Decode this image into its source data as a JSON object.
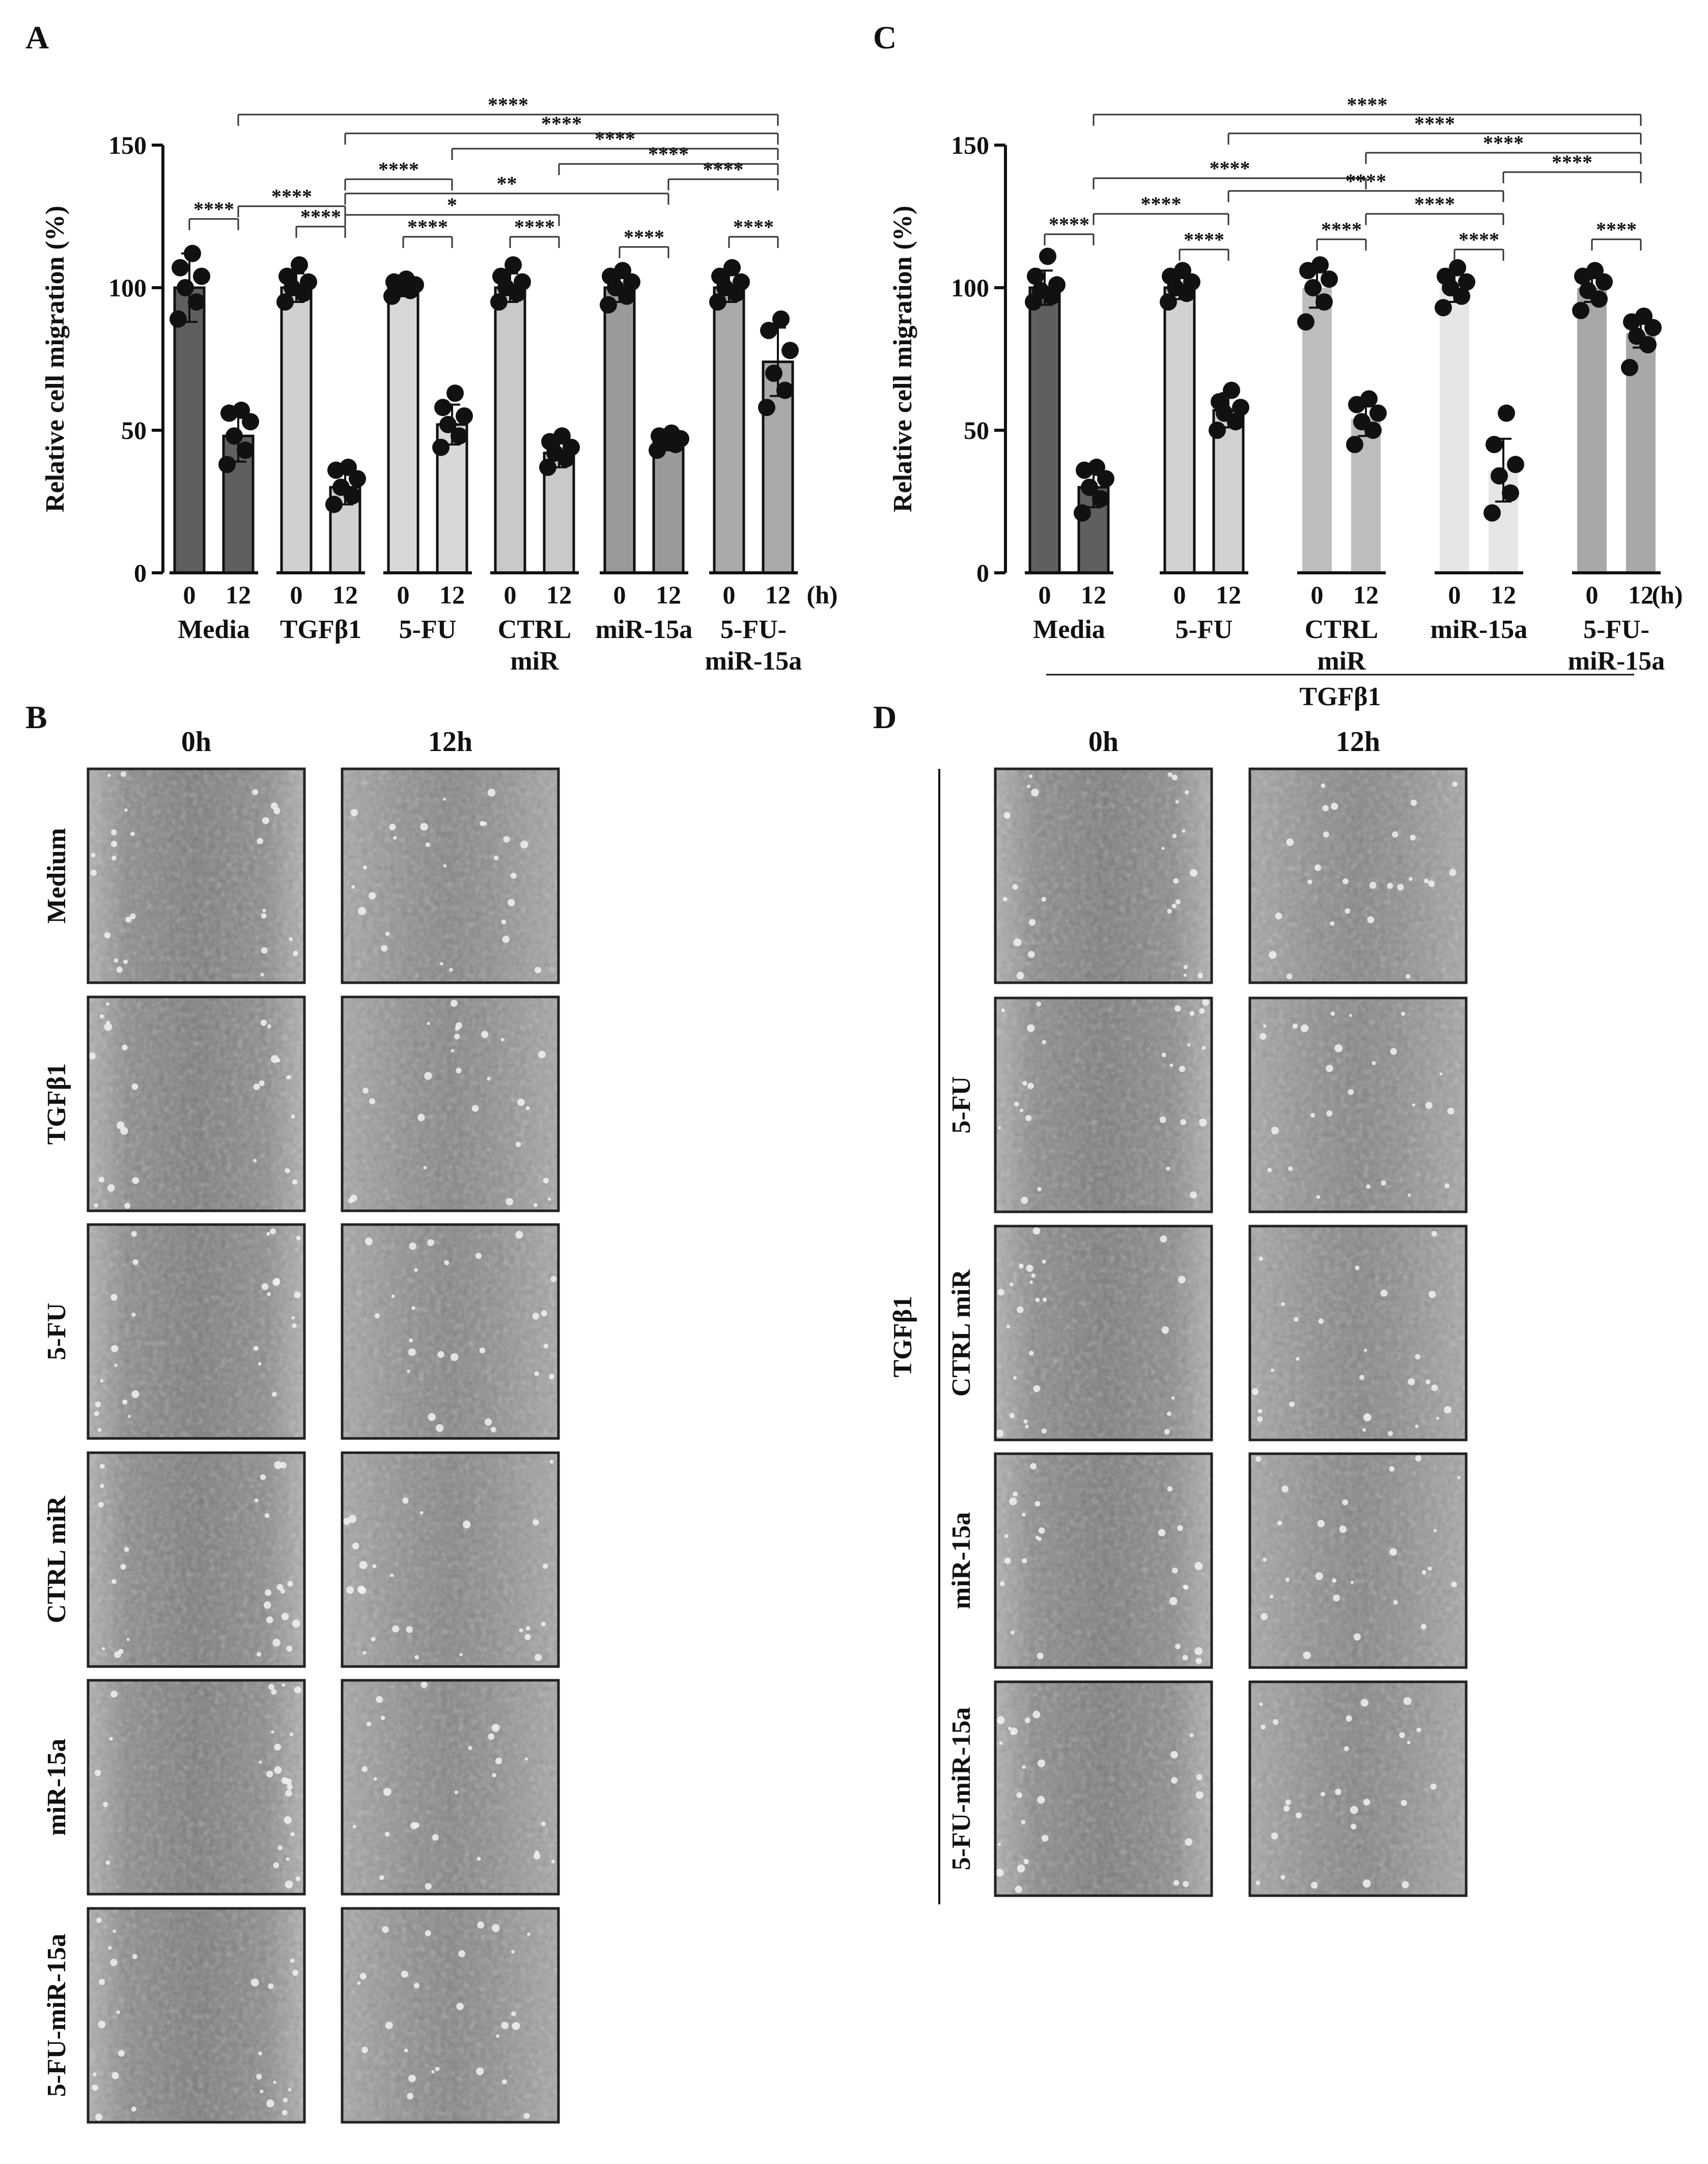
{
  "panel_labels": [
    "A",
    "B",
    "C",
    "D"
  ],
  "colors": {
    "bar_dark": "#6e6e6e",
    "bar_light": "#d6d6d6",
    "bar_lightgray": "#c2c2c2",
    "bar_verylight": "#e8e8e8",
    "micrograph_bg": "#7a7a7a"
  },
  "chart_data": [
    {
      "panel": "A",
      "type": "bar",
      "ylabel": "Relative cell migration (%)",
      "ylim": [
        0,
        150
      ],
      "yticks": [
        "0",
        "50",
        "100",
        "150"
      ],
      "time_unit_label": "(h)",
      "groups": [
        {
          "name": "Media",
          "bars": [
            {
              "time": "0",
              "value": 100,
              "sd": 12,
              "points": [
                89,
                95,
                100,
                104,
                107,
                112
              ]
            },
            {
              "time": "12",
              "value": 48,
              "sd": 9,
              "points": [
                38,
                43,
                48,
                53,
                56,
                57
              ]
            }
          ]
        },
        {
          "name": "TGFβ1",
          "bars": [
            {
              "time": "0",
              "value": 100,
              "sd": 5,
              "points": [
                95,
                98,
                100,
                102,
                104,
                108
              ]
            },
            {
              "time": "12",
              "value": 30,
              "sd": 6,
              "points": [
                24,
                27,
                30,
                33,
                36,
                37
              ]
            }
          ]
        },
        {
          "name": "5-FU",
          "bars": [
            {
              "time": "0",
              "value": 100,
              "sd": 3,
              "points": [
                97,
                99,
                100,
                101,
                102,
                103
              ]
            },
            {
              "time": "12",
              "value": 52,
              "sd": 7,
              "points": [
                44,
                48,
                52,
                55,
                58,
                63
              ]
            }
          ]
        },
        {
          "name": "CTRL\nmiR",
          "bars": [
            {
              "time": "0",
              "value": 100,
              "sd": 5,
              "points": [
                95,
                98,
                100,
                102,
                104,
                108
              ]
            },
            {
              "time": "12",
              "value": 42,
              "sd": 5,
              "points": [
                37,
                40,
                42,
                44,
                46,
                48
              ]
            }
          ]
        },
        {
          "name": "miR-15a",
          "bars": [
            {
              "time": "0",
              "value": 100,
              "sd": 5,
              "points": [
                94,
                97,
                100,
                102,
                104,
                106
              ]
            },
            {
              "time": "12",
              "value": 46,
              "sd": 3,
              "points": [
                43,
                45,
                46,
                47,
                48,
                49
              ]
            }
          ]
        },
        {
          "name": "5-FU-\nmiR-15a",
          "bars": [
            {
              "time": "0",
              "value": 100,
              "sd": 5,
              "points": [
                95,
                98,
                100,
                102,
                104,
                107
              ]
            },
            {
              "time": "12",
              "value": 74,
              "sd": 12,
              "points": [
                58,
                64,
                70,
                78,
                85,
                89
              ]
            }
          ]
        }
      ],
      "significance": [
        {
          "from": "Media-12",
          "to": "5-FU-\nmiR-15a-12",
          "label": "****"
        },
        {
          "from": "TGFβ1-12",
          "to": "5-FU-\nmiR-15a-12",
          "label": "****"
        },
        {
          "from": "5-FU-12",
          "to": "5-FU-\nmiR-15a-12",
          "label": "****"
        },
        {
          "from": "CTRL\nmiR-12",
          "to": "5-FU-\nmiR-15a-12",
          "label": "****"
        },
        {
          "from": "miR-15a-12",
          "to": "5-FU-\nmiR-15a-12",
          "label": "****"
        },
        {
          "from": "Media-12",
          "to": "TGFβ1-12",
          "label": "****"
        },
        {
          "from": "TGFβ1-12",
          "to": "5-FU-12",
          "label": "****"
        },
        {
          "from": "TGFβ1-12",
          "to": "miR-15a-12",
          "label": "**"
        },
        {
          "from": "TGFβ1-12",
          "to": "CTRL\nmiR-12",
          "label": "*"
        },
        {
          "from": "Media-0",
          "to": "Media-12",
          "label": "****"
        },
        {
          "from": "TGFβ1-0",
          "to": "TGFβ1-12",
          "label": "****"
        },
        {
          "from": "5-FU-0",
          "to": "5-FU-12",
          "label": "****"
        },
        {
          "from": "CTRL\nmiR-0",
          "to": "CTRL\nmiR-12",
          "label": "****"
        },
        {
          "from": "miR-15a-0",
          "to": "miR-15a-12",
          "label": "****"
        },
        {
          "from": "5-FU-\nmiR-15a-0",
          "to": "5-FU-\nmiR-15a-12",
          "label": "****"
        }
      ]
    },
    {
      "panel": "C",
      "type": "bar",
      "ylabel": "Relative cell migration (%)",
      "ylim": [
        0,
        150
      ],
      "yticks": [
        "0",
        "50",
        "100",
        "150"
      ],
      "time_unit_label": "(h)",
      "bracket_label": "TGFβ1",
      "groups": [
        {
          "name": "Media",
          "bars": [
            {
              "time": "0",
              "value": 100,
              "sd": 6,
              "points": [
                95,
                97,
                99,
                101,
                104,
                111
              ]
            },
            {
              "time": "12",
              "value": 30,
              "sd": 7,
              "points": [
                21,
                26,
                30,
                33,
                36,
                37
              ]
            }
          ]
        },
        {
          "name": "5-FU",
          "bars": [
            {
              "time": "0",
              "value": 100,
              "sd": 4,
              "points": [
                95,
                98,
                100,
                102,
                104,
                106
              ]
            },
            {
              "time": "12",
              "value": 57,
              "sd": 6,
              "points": [
                50,
                53,
                56,
                58,
                60,
                64
              ]
            }
          ]
        },
        {
          "name": "CTRL\nmiR",
          "bars": [
            {
              "time": "0",
              "value": 100,
              "sd": 7,
              "points": [
                88,
                95,
                100,
                103,
                106,
                108
              ]
            },
            {
              "time": "12",
              "value": 54,
              "sd": 6,
              "points": [
                45,
                50,
                53,
                56,
                59,
                61
              ]
            }
          ]
        },
        {
          "name": "miR-15a",
          "bars": [
            {
              "time": "0",
              "value": 100,
              "sd": 5,
              "points": [
                93,
                97,
                100,
                102,
                104,
                107
              ]
            },
            {
              "time": "12",
              "value": 36,
              "sd": 11,
              "points": [
                21,
                28,
                34,
                38,
                45,
                56
              ]
            }
          ]
        },
        {
          "name": "5-FU-\nmiR-15a",
          "bars": [
            {
              "time": "0",
              "value": 100,
              "sd": 5,
              "points": [
                92,
                96,
                99,
                102,
                104,
                106
              ]
            },
            {
              "time": "12",
              "value": 84,
              "sd": 5,
              "points": [
                72,
                80,
                83,
                86,
                88,
                90
              ]
            }
          ]
        }
      ],
      "significance": [
        {
          "from": "Media-12",
          "to": "5-FU-\nmiR-15a-12",
          "label": "****"
        },
        {
          "from": "5-FU-12",
          "to": "5-FU-\nmiR-15a-12",
          "label": "****"
        },
        {
          "from": "CTRL\nmiR-12",
          "to": "5-FU-\nmiR-15a-12",
          "label": "****"
        },
        {
          "from": "miR-15a-12",
          "to": "5-FU-\nmiR-15a-12",
          "label": "****"
        },
        {
          "from": "Media-12",
          "to": "CTRL\nmiR-12",
          "label": "****"
        },
        {
          "from": "5-FU-12",
          "to": "miR-15a-12",
          "label": "****"
        },
        {
          "from": "Media-12",
          "to": "5-FU-12",
          "label": "****"
        },
        {
          "from": "CTRL\nmiR-12",
          "to": "miR-15a-12",
          "label": "****"
        },
        {
          "from": "Media-0",
          "to": "Media-12",
          "label": "****"
        },
        {
          "from": "5-FU-0",
          "to": "5-FU-12",
          "label": "****"
        },
        {
          "from": "CTRL\nmiR-0",
          "to": "CTRL\nmiR-12",
          "label": "****"
        },
        {
          "from": "miR-15a-0",
          "to": "miR-15a-12",
          "label": "****"
        },
        {
          "from": "5-FU-\nmiR-15a-0",
          "to": "5-FU-\nmiR-15a-12",
          "label": "****"
        }
      ]
    }
  ],
  "micrographs": {
    "B": {
      "columns": [
        "0h",
        "12h"
      ],
      "rows": [
        "Medium",
        "TGFβ1",
        "5-FU",
        "CTRL miR",
        "miR-15a",
        "5-FU-miR-15a"
      ]
    },
    "D": {
      "columns": [
        "0h",
        "12h"
      ],
      "rows": [
        "5-FU",
        "CTRL miR",
        "miR-15a",
        "5-FU-miR-15a"
      ],
      "group_label": "TGFβ1"
    }
  }
}
